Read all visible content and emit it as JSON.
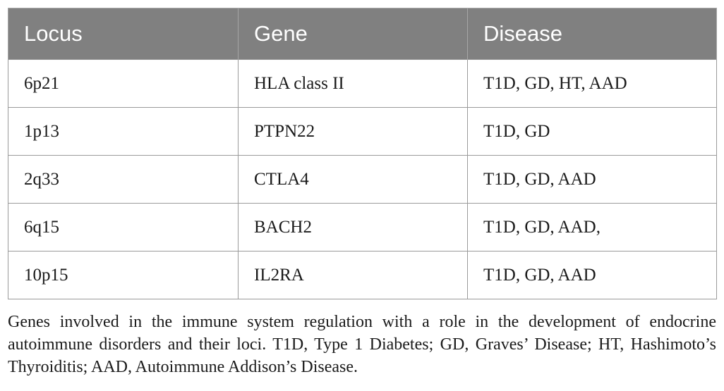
{
  "table": {
    "headers": [
      "Locus",
      "Gene",
      "Disease"
    ],
    "rows": [
      [
        "6p21",
        "HLA class II",
        "T1D, GD, HT, AAD"
      ],
      [
        "1p13",
        "PTPN22",
        "T1D, GD"
      ],
      [
        "2q33",
        "CTLA4",
        "T1D, GD, AAD"
      ],
      [
        "6q15",
        "BACH2",
        "T1D, GD, AAD,"
      ],
      [
        "10p15",
        "IL2RA",
        "T1D, GD, AAD"
      ]
    ],
    "header_bg_color": "#808080",
    "header_text_color": "#ffffff"
  },
  "caption": "Genes involved in the immune system regulation with a role in the development of endocrine autoimmune disorders and their loci. T1D, Type 1 Diabetes; GD, Graves’ Disease; HT, Hashimoto’s Thyroiditis; AAD, Autoimmune Addison’s Disease."
}
